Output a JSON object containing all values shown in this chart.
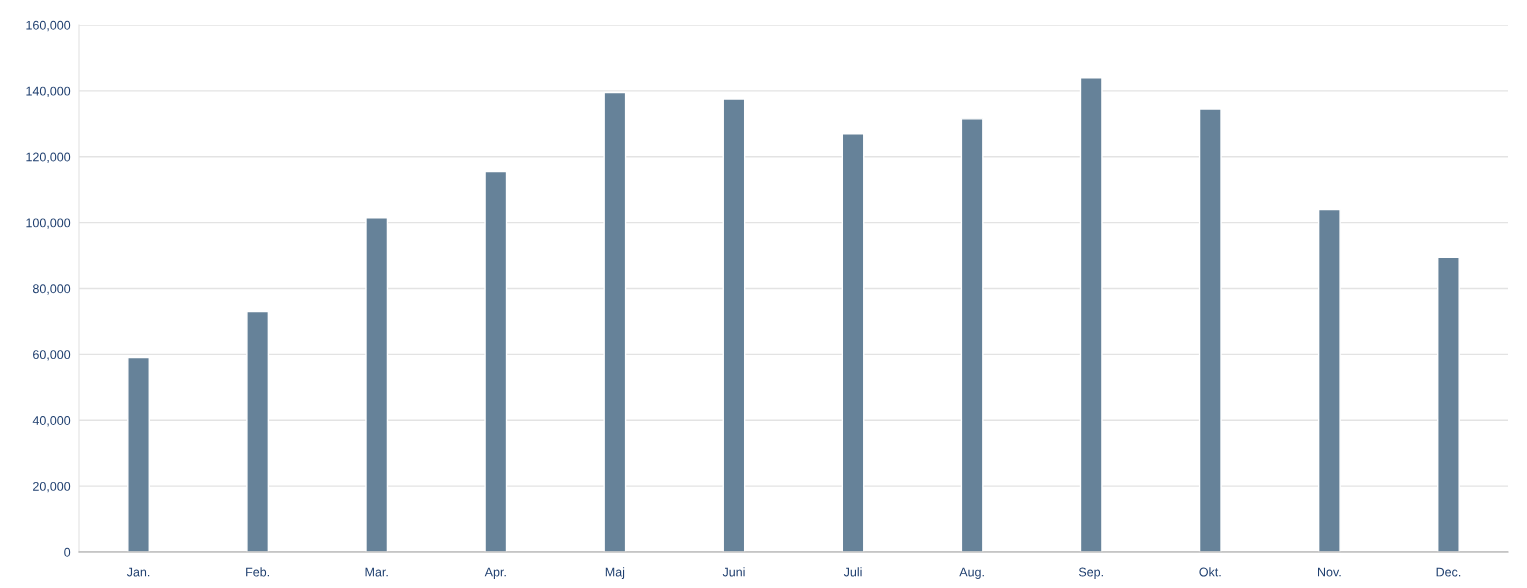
{
  "chart_data": {
    "type": "bar",
    "categories": [
      "Jan.",
      "Feb.",
      "Mar.",
      "Apr.",
      "Maj",
      "Juni",
      "Juli",
      "Aug.",
      "Sep.",
      "Okt.",
      "Nov.",
      "Dec."
    ],
    "values": [
      59000,
      73000,
      101500,
      115500,
      139500,
      137500,
      127000,
      131500,
      144000,
      134500,
      104000,
      89500
    ],
    "color": "#668299",
    "ylim": [
      0,
      160000
    ],
    "yticks": [
      0,
      {
        "value": 20000,
        "label": "20,000"
      },
      {
        "value": 40000,
        "label": "40,000"
      },
      {
        "value": 60000,
        "label": "60,000"
      },
      {
        "value": 80000,
        "label": "80,000"
      },
      {
        "value": 100000,
        "label": "100,000"
      },
      {
        "value": 120000,
        "label": "120,000"
      },
      {
        "value": 140000,
        "label": "140,000"
      },
      {
        "value": 160000,
        "label": "160,000"
      }
    ],
    "grid": "y"
  }
}
